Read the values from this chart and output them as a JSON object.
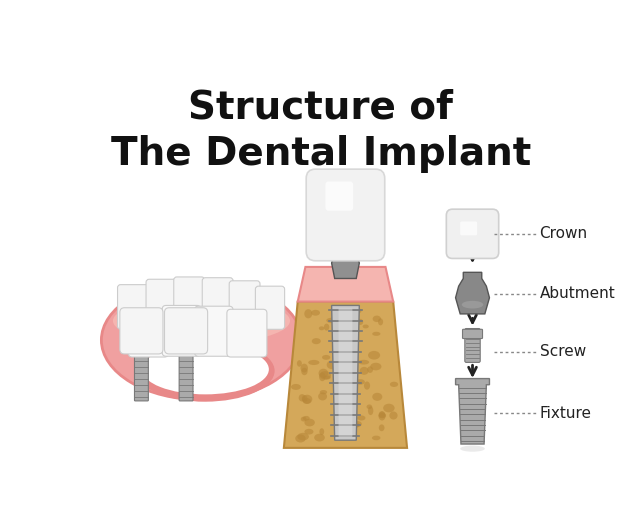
{
  "title_line1": "Structure of",
  "title_line2": "The Dental Implant",
  "title_fontsize": 28,
  "title_color": "#111111",
  "bg_color": "#ffffff",
  "labels": [
    "Crown",
    "Abutment",
    "Screw",
    "Fixture"
  ],
  "label_fontsize": 11,
  "arrow_color": "#222222",
  "dotline_color": "#888888",
  "gum_pink_light": "#f5b5b0",
  "gum_pink_mid": "#f0a0a0",
  "gum_pink_dark": "#e88888",
  "bone_tan": "#d4a85a",
  "bone_dot": "#b8883a",
  "implant_light": "#c8c8c8",
  "implant_mid": "#aaaaaa",
  "implant_dark": "#787878",
  "tooth_white": "#f5f5f5",
  "tooth_edge": "#cccccc"
}
